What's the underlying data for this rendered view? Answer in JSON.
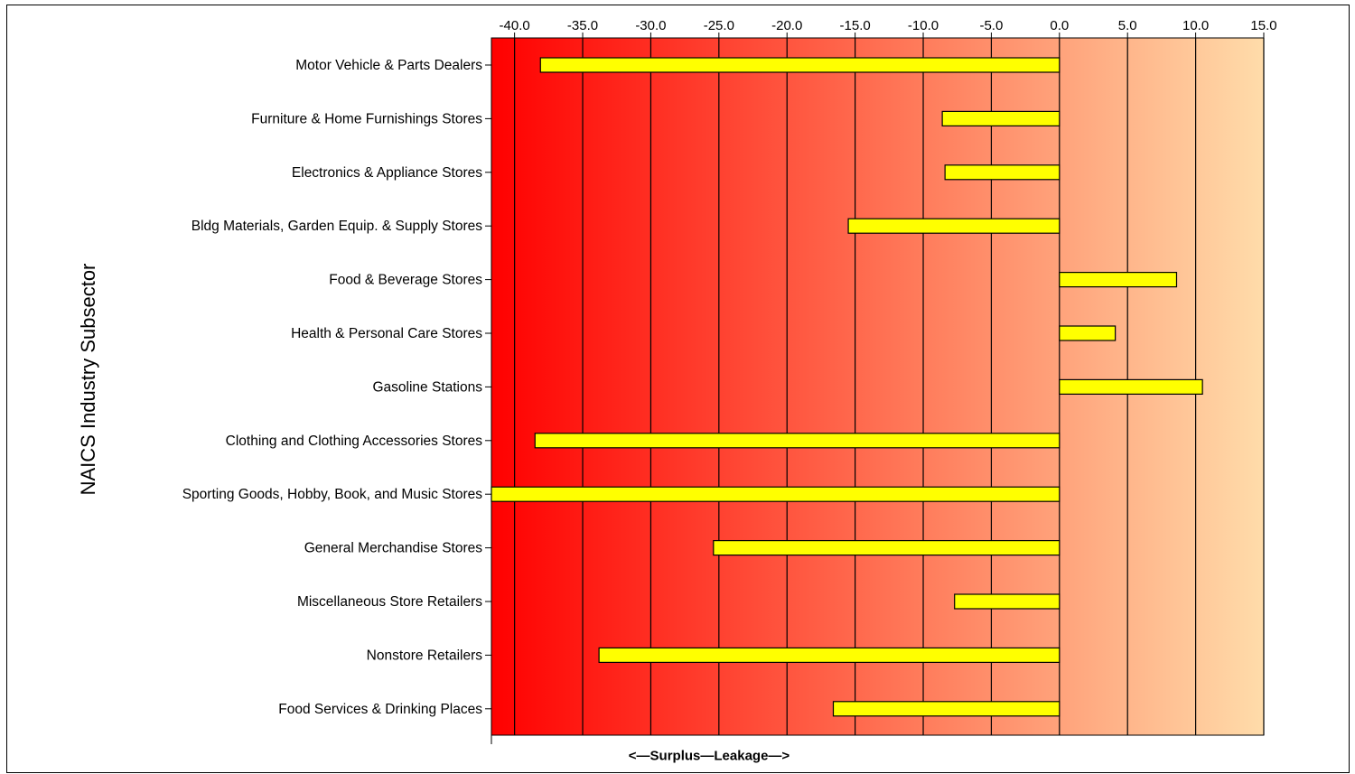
{
  "chart_data": {
    "type": "bar",
    "orientation": "horizontal",
    "title": "",
    "xlabel": "<—Surplus—Leakage—>",
    "ylabel": "NAICS Industry Subsector",
    "xlim": [
      -41.7,
      15.0
    ],
    "xticks": [
      -40.0,
      -35.0,
      -30.0,
      -25.0,
      -20.0,
      -15.0,
      -10.0,
      -5.0,
      0.0,
      5.0,
      10.0,
      15.0
    ],
    "tick_labels": [
      "-40.0",
      "-35.0",
      "-30.0",
      "-25.0",
      "-20.0",
      "-15.0",
      "-10.0",
      "-5.0",
      "0.0",
      "5.0",
      "10.0",
      "15.0"
    ],
    "grid": "vertical",
    "background": "gradient from red (surplus, left) to light orange (leakage, right)",
    "categories": [
      "Motor Vehicle & Parts Dealers",
      "Furniture & Home Furnishings Stores",
      "Electronics & Appliance Stores",
      "Bldg Materials, Garden Equip. & Supply Stores",
      "Food & Beverage Stores",
      "Health & Personal Care Stores",
      "Gasoline Stations",
      "Clothing and Clothing Accessories Stores",
      "Sporting Goods, Hobby, Book, and Music Stores",
      "General Merchandise Stores",
      "Miscellaneous Store Retailers",
      "Nonstore Retailers",
      "Food Services & Drinking Places"
    ],
    "values": [
      -38.1,
      -8.6,
      -8.4,
      -15.5,
      8.6,
      4.1,
      10.5,
      -38.5,
      -41.7,
      -25.4,
      -7.7,
      -33.8,
      -16.6
    ],
    "colors": {
      "bar": "#ffff00",
      "bar_stroke": "#000000",
      "bg_left": "#ff0000",
      "bg_right": "#ffdcaa",
      "grid": "#000000"
    }
  }
}
